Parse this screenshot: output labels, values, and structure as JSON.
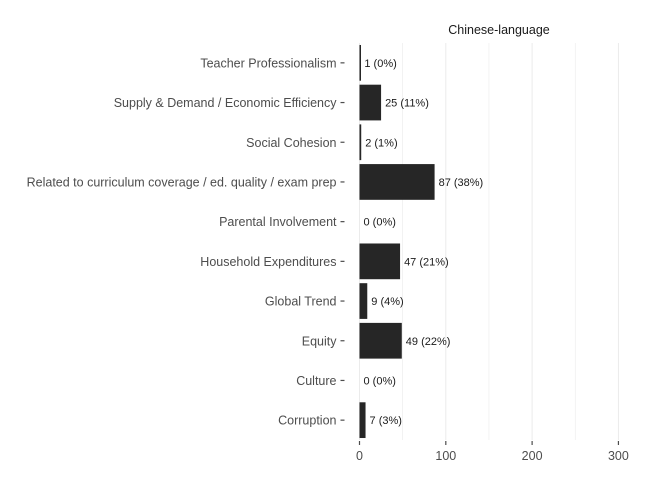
{
  "chart_data": {
    "type": "bar",
    "orientation": "horizontal",
    "facet_title": "Chinese-language",
    "categories": [
      "Teacher Professionalism",
      "Supply & Demand / Economic Efficiency",
      "Social Cohesion",
      "Related to curriculum coverage / ed. quality / exam prep",
      "Parental Involvement",
      "Household Expenditures",
      "Global Trend",
      "Equity",
      "Culture",
      "Corruption"
    ],
    "values": [
      1,
      25,
      2,
      87,
      0,
      47,
      9,
      49,
      0,
      7
    ],
    "data_labels": [
      "1 (0%)",
      "25 (11%)",
      "2 (1%)",
      "87 (38%)",
      "0 (0%)",
      "47 (21%)",
      "9 (4%)",
      "49 (22%)",
      "0 (0%)",
      "7 (3%)"
    ],
    "xlim": [
      0,
      300
    ],
    "x_ticks": [
      0,
      100,
      200,
      300
    ],
    "x_tick_labels": [
      "0",
      "100",
      "200",
      "300"
    ],
    "grid": "vertical-major",
    "colors": {
      "bar": "#262626",
      "grid": "#ebebeb",
      "text": "#4d4d4d"
    }
  }
}
